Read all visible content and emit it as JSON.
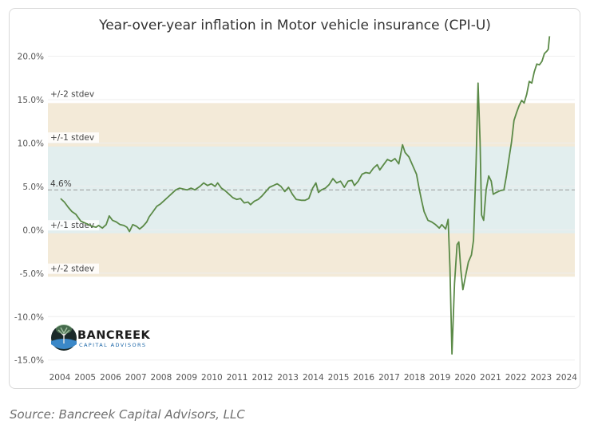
{
  "chart_data": {
    "type": "line",
    "title": "Year-over-year inflation in Motor vehicle insurance (CPI-U)",
    "xlabel": "",
    "ylabel": "",
    "xlim": [
      2004,
      2024.8
    ],
    "ylim": [
      -15.3,
      22.8
    ],
    "x_ticks": [
      "2004",
      "2005",
      "2006",
      "2007",
      "2008",
      "2009",
      "2010",
      "2011",
      "2012",
      "2013",
      "2014",
      "2015",
      "2016",
      "2017",
      "2018",
      "2019",
      "2020",
      "2021",
      "2022",
      "2023",
      "2024"
    ],
    "y_ticks": [
      {
        "value": 20,
        "label": "20.0%"
      },
      {
        "value": 15,
        "label": "15.0%"
      },
      {
        "value": 10,
        "label": "10.0%"
      },
      {
        "value": 5,
        "label": "5.0%"
      },
      {
        "value": 0,
        "label": "0.0%"
      },
      {
        "value": -5,
        "label": "-5.0%"
      },
      {
        "value": -10,
        "label": "-10.0%"
      },
      {
        "value": -15,
        "label": "-15.0%"
      }
    ],
    "mean": {
      "value": 4.6,
      "label": "4.6%"
    },
    "bands": [
      {
        "name": "+/-2 stdev",
        "from": -5.4,
        "to": 14.6,
        "color": "#f3ead8"
      },
      {
        "name": "+/-1 stdev",
        "from": -0.4,
        "to": 9.6,
        "color": "#e2eeee"
      }
    ],
    "band_labels": [
      {
        "text": "+/-2 stdev",
        "value": 15.3
      },
      {
        "text": "+/-1 stdev",
        "value": 10.3
      },
      {
        "text": "+/-1 stdev",
        "value": 0.2
      },
      {
        "text": "+/-2 stdev",
        "value": -4.8
      }
    ],
    "series": [
      {
        "name": "Motor vehicle insurance YoY",
        "color": "#5b8a47",
        "points": [
          [
            2004.5,
            3.6
          ],
          [
            2004.65,
            3.2
          ],
          [
            2004.8,
            2.6
          ],
          [
            2004.95,
            2.1
          ],
          [
            2005.1,
            1.8
          ],
          [
            2005.3,
            1.0
          ],
          [
            2005.45,
            0.8
          ],
          [
            2005.6,
            0.6
          ],
          [
            2005.75,
            0.4
          ],
          [
            2005.9,
            0.3
          ],
          [
            2006.0,
            0.5
          ],
          [
            2006.15,
            0.2
          ],
          [
            2006.3,
            0.6
          ],
          [
            2006.42,
            1.6
          ],
          [
            2006.55,
            1.1
          ],
          [
            2006.7,
            0.9
          ],
          [
            2006.85,
            0.6
          ],
          [
            2007.0,
            0.5
          ],
          [
            2007.12,
            0.3
          ],
          [
            2007.22,
            -0.2
          ],
          [
            2007.35,
            0.6
          ],
          [
            2007.5,
            0.4
          ],
          [
            2007.62,
            0.1
          ],
          [
            2007.75,
            0.4
          ],
          [
            2007.9,
            0.9
          ],
          [
            2008.0,
            1.5
          ],
          [
            2008.15,
            2.1
          ],
          [
            2008.3,
            2.7
          ],
          [
            2008.45,
            3.0
          ],
          [
            2008.6,
            3.4
          ],
          [
            2008.75,
            3.8
          ],
          [
            2008.9,
            4.2
          ],
          [
            2009.05,
            4.6
          ],
          [
            2009.2,
            4.8
          ],
          [
            2009.35,
            4.7
          ],
          [
            2009.5,
            4.6
          ],
          [
            2009.65,
            4.8
          ],
          [
            2009.8,
            4.6
          ],
          [
            2010.0,
            5.0
          ],
          [
            2010.15,
            5.4
          ],
          [
            2010.3,
            5.1
          ],
          [
            2010.45,
            5.3
          ],
          [
            2010.6,
            5.0
          ],
          [
            2010.7,
            5.4
          ],
          [
            2010.85,
            4.8
          ],
          [
            2011.0,
            4.5
          ],
          [
            2011.15,
            4.1
          ],
          [
            2011.3,
            3.7
          ],
          [
            2011.45,
            3.5
          ],
          [
            2011.6,
            3.6
          ],
          [
            2011.75,
            3.1
          ],
          [
            2011.9,
            3.2
          ],
          [
            2012.0,
            2.9
          ],
          [
            2012.15,
            3.3
          ],
          [
            2012.3,
            3.5
          ],
          [
            2012.45,
            3.9
          ],
          [
            2012.6,
            4.4
          ],
          [
            2012.75,
            4.9
          ],
          [
            2012.9,
            5.1
          ],
          [
            2013.05,
            5.3
          ],
          [
            2013.2,
            5.0
          ],
          [
            2013.35,
            4.4
          ],
          [
            2013.5,
            4.9
          ],
          [
            2013.65,
            4.1
          ],
          [
            2013.8,
            3.5
          ],
          [
            2014.0,
            3.4
          ],
          [
            2014.15,
            3.4
          ],
          [
            2014.3,
            3.6
          ],
          [
            2014.45,
            4.8
          ],
          [
            2014.58,
            5.4
          ],
          [
            2014.68,
            4.3
          ],
          [
            2014.8,
            4.6
          ],
          [
            2014.95,
            4.8
          ],
          [
            2015.1,
            5.2
          ],
          [
            2015.25,
            5.9
          ],
          [
            2015.4,
            5.4
          ],
          [
            2015.55,
            5.6
          ],
          [
            2015.7,
            4.9
          ],
          [
            2015.85,
            5.6
          ],
          [
            2016.0,
            5.7
          ],
          [
            2016.1,
            5.1
          ],
          [
            2016.25,
            5.6
          ],
          [
            2016.4,
            6.4
          ],
          [
            2016.55,
            6.6
          ],
          [
            2016.7,
            6.5
          ],
          [
            2016.85,
            7.1
          ],
          [
            2017.0,
            7.5
          ],
          [
            2017.1,
            6.9
          ],
          [
            2017.25,
            7.5
          ],
          [
            2017.4,
            8.1
          ],
          [
            2017.55,
            7.9
          ],
          [
            2017.7,
            8.2
          ],
          [
            2017.85,
            7.6
          ],
          [
            2018.0,
            9.8
          ],
          [
            2018.1,
            8.9
          ],
          [
            2018.25,
            8.4
          ],
          [
            2018.4,
            7.4
          ],
          [
            2018.55,
            6.4
          ],
          [
            2018.65,
            4.8
          ],
          [
            2018.75,
            3.4
          ],
          [
            2018.85,
            2.1
          ],
          [
            2019.0,
            1.1
          ],
          [
            2019.15,
            0.9
          ],
          [
            2019.3,
            0.6
          ],
          [
            2019.45,
            0.2
          ],
          [
            2019.55,
            0.6
          ],
          [
            2019.7,
            0.1
          ],
          [
            2019.8,
            1.2
          ],
          [
            2019.87,
            -4.4
          ],
          [
            2019.95,
            -14.3
          ],
          [
            2020.05,
            -6.2
          ],
          [
            2020.15,
            -1.7
          ],
          [
            2020.22,
            -1.4
          ],
          [
            2020.3,
            -4.6
          ],
          [
            2020.38,
            -6.9
          ],
          [
            2020.5,
            -5.1
          ],
          [
            2020.6,
            -3.7
          ],
          [
            2020.72,
            -2.9
          ],
          [
            2020.8,
            -1.2
          ],
          [
            2020.9,
            7.6
          ],
          [
            2020.98,
            16.9
          ],
          [
            2021.06,
            10.2
          ],
          [
            2021.12,
            1.7
          ],
          [
            2021.2,
            1.1
          ],
          [
            2021.3,
            4.6
          ],
          [
            2021.4,
            6.2
          ],
          [
            2021.5,
            5.6
          ],
          [
            2021.58,
            4.1
          ],
          [
            2021.7,
            4.3
          ],
          [
            2021.85,
            4.5
          ],
          [
            2022.0,
            4.6
          ],
          [
            2022.1,
            6.2
          ],
          [
            2022.2,
            8.2
          ],
          [
            2022.3,
            10.1
          ],
          [
            2022.4,
            12.6
          ],
          [
            2022.5,
            13.5
          ],
          [
            2022.6,
            14.3
          ],
          [
            2022.7,
            14.9
          ],
          [
            2022.8,
            14.6
          ],
          [
            2022.9,
            15.6
          ],
          [
            2023.0,
            17.1
          ],
          [
            2023.1,
            16.9
          ],
          [
            2023.2,
            18.2
          ],
          [
            2023.3,
            19.1
          ],
          [
            2023.4,
            19.0
          ],
          [
            2023.5,
            19.4
          ],
          [
            2023.6,
            20.3
          ],
          [
            2023.7,
            20.6
          ],
          [
            2023.75,
            20.8
          ],
          [
            2023.8,
            22.3
          ]
        ]
      }
    ]
  },
  "source": "Source: Bancreek Capital Advisors, LLC",
  "logo": {
    "name": "BANCREEK",
    "tagline": "CAPITAL ADVISORS"
  },
  "colors": {
    "line": "#5b8a47",
    "mean": "#999999",
    "grid": "#eeeeee"
  }
}
